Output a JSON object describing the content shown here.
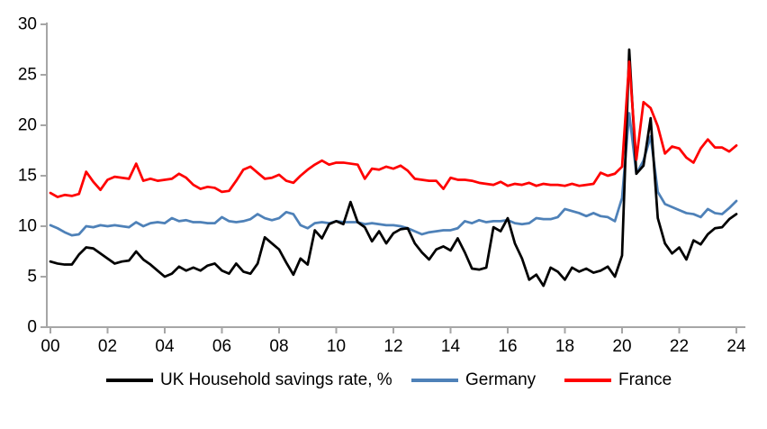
{
  "chart_data": {
    "type": "line",
    "title": "",
    "xlabel": "",
    "ylabel": "",
    "x_start": 2000.0,
    "x_step": 0.25,
    "x_unit": "quarterly",
    "ylim": [
      0,
      30
    ],
    "y_ticks": [
      0,
      5,
      10,
      15,
      20,
      25,
      30
    ],
    "x_tick_years": [
      2000,
      2002,
      2004,
      2006,
      2008,
      2010,
      2012,
      2014,
      2016,
      2018,
      2020,
      2022,
      2024
    ],
    "x_tick_labels": [
      "00",
      "02",
      "04",
      "06",
      "08",
      "10",
      "12",
      "14",
      "16",
      "18",
      "20",
      "22",
      "24"
    ],
    "grid": false,
    "legend_position": "bottom",
    "axis_color": "#a6a6a6",
    "legend": [
      {
        "id": "uk",
        "label": "UK Household savings rate, %",
        "color": "#000000"
      },
      {
        "id": "germany",
        "label": "Germany",
        "color": "#4e81b8"
      },
      {
        "id": "france",
        "label": "France",
        "color": "#ff0000"
      }
    ],
    "series": [
      {
        "name": "Germany",
        "color": "#4e81b8",
        "values": [
          10.1,
          9.8,
          9.4,
          9.1,
          9.2,
          10.0,
          9.9,
          10.1,
          10.0,
          10.1,
          10.0,
          9.9,
          10.4,
          10.0,
          10.3,
          10.4,
          10.3,
          10.8,
          10.5,
          10.6,
          10.4,
          10.4,
          10.3,
          10.3,
          10.9,
          10.5,
          10.4,
          10.5,
          10.7,
          11.2,
          10.8,
          10.6,
          10.8,
          11.4,
          11.2,
          10.1,
          9.8,
          10.3,
          10.4,
          10.3,
          10.5,
          10.4,
          10.4,
          10.4,
          10.2,
          10.3,
          10.2,
          10.1,
          10.1,
          10.0,
          9.8,
          9.5,
          9.2,
          9.4,
          9.5,
          9.6,
          9.6,
          9.8,
          10.5,
          10.3,
          10.6,
          10.4,
          10.5,
          10.5,
          10.6,
          10.3,
          10.2,
          10.3,
          10.8,
          10.7,
          10.7,
          10.9,
          11.7,
          11.5,
          11.3,
          11.0,
          11.3,
          11.0,
          10.9,
          10.5,
          12.8,
          21.2,
          15.2,
          16.5,
          18.9,
          13.4,
          12.2,
          11.9,
          11.6,
          11.3,
          11.2,
          10.9,
          11.7,
          11.3,
          11.2,
          11.8,
          12.5
        ]
      },
      {
        "name": "UK Household savings rate, %",
        "color": "#000000",
        "values": [
          6.5,
          6.3,
          6.2,
          6.2,
          7.2,
          7.9,
          7.8,
          7.3,
          6.8,
          6.3,
          6.5,
          6.6,
          7.5,
          6.7,
          6.2,
          5.6,
          5.0,
          5.3,
          6.0,
          5.6,
          5.9,
          5.6,
          6.1,
          6.3,
          5.6,
          5.3,
          6.3,
          5.5,
          5.3,
          6.3,
          8.9,
          8.3,
          7.7,
          6.4,
          5.2,
          6.8,
          6.2,
          9.6,
          8.8,
          10.2,
          10.5,
          10.2,
          12.4,
          10.4,
          9.9,
          8.5,
          9.5,
          8.3,
          9.3,
          9.7,
          9.8,
          8.3,
          7.4,
          6.7,
          7.7,
          8.0,
          7.6,
          8.8,
          7.4,
          5.8,
          5.7,
          5.9,
          9.9,
          9.5,
          10.8,
          8.3,
          6.8,
          4.7,
          5.2,
          4.1,
          5.9,
          5.5,
          4.7,
          5.9,
          5.5,
          5.8,
          5.4,
          5.6,
          6.0,
          5.0,
          7.1,
          27.5,
          15.2,
          16.0,
          20.7,
          10.8,
          8.3,
          7.3,
          7.9,
          6.7,
          8.6,
          8.2,
          9.2,
          9.8,
          9.9,
          10.7,
          11.2
        ]
      },
      {
        "name": "France",
        "color": "#ff0000",
        "values": [
          13.3,
          12.9,
          13.1,
          13.0,
          13.2,
          15.4,
          14.4,
          13.6,
          14.6,
          14.9,
          14.8,
          14.7,
          16.2,
          14.5,
          14.7,
          14.5,
          14.6,
          14.7,
          15.2,
          14.8,
          14.1,
          13.7,
          13.9,
          13.8,
          13.4,
          13.5,
          14.5,
          15.6,
          15.9,
          15.3,
          14.7,
          14.8,
          15.1,
          14.5,
          14.3,
          15.0,
          15.6,
          16.1,
          16.5,
          16.1,
          16.3,
          16.3,
          16.2,
          16.1,
          14.7,
          15.7,
          15.6,
          15.9,
          15.7,
          16.0,
          15.5,
          14.7,
          14.6,
          14.5,
          14.5,
          13.7,
          14.8,
          14.6,
          14.6,
          14.5,
          14.3,
          14.2,
          14.1,
          14.4,
          14.0,
          14.2,
          14.1,
          14.3,
          14.0,
          14.2,
          14.1,
          14.1,
          14.0,
          14.2,
          14.0,
          14.1,
          14.2,
          15.3,
          15.0,
          15.2,
          15.9,
          26.3,
          16.6,
          22.3,
          21.7,
          19.9,
          17.2,
          17.9,
          17.7,
          16.8,
          16.3,
          17.7,
          18.6,
          17.8,
          17.8,
          17.4,
          18.0
        ]
      }
    ]
  },
  "legend_ui": {
    "uk_label": "UK Household savings rate, %",
    "germany_label": "Germany",
    "france_label": "France"
  }
}
